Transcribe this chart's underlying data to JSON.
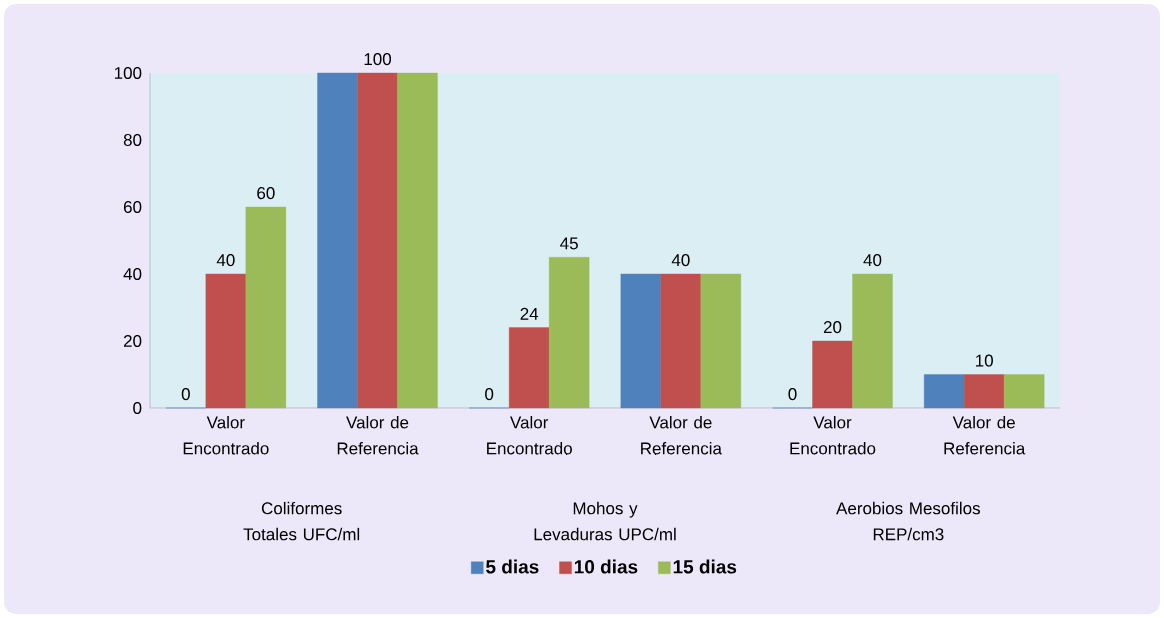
{
  "chart_data": {
    "type": "bar",
    "categories": [
      "Valor Encontrado",
      "Valor de Referencia",
      "Valor Encontrado",
      "Valor de Referencia",
      "Valor Encontrado",
      "Valor de Referencia"
    ],
    "series": [
      {
        "name": "5 dias",
        "color": "#4f81bd",
        "values": [
          0,
          100,
          0,
          40,
          0,
          10
        ],
        "value_labels": [
          "0",
          null,
          "0",
          null,
          "0",
          null
        ]
      },
      {
        "name": "10 dias",
        "color": "#c0504d",
        "values": [
          40,
          100,
          24,
          40,
          20,
          10
        ],
        "value_labels": [
          "40",
          "100",
          "24",
          "40",
          "20",
          "10"
        ]
      },
      {
        "name": "15 dias",
        "color": "#9bbb59",
        "values": [
          60,
          100,
          45,
          40,
          40,
          10
        ],
        "value_labels": [
          "60",
          null,
          "45",
          null,
          "40",
          null
        ]
      }
    ],
    "annotations": [
      "Coliformes Totales UFC/ml",
      "Mohos y Levaduras UPC/ml",
      "Aerobios Mesofilos REP/cm3"
    ],
    "ylim": [
      0,
      100
    ],
    "yticks": [
      0,
      20,
      40,
      60,
      80,
      100
    ],
    "grid": false,
    "legend": "bottom"
  }
}
